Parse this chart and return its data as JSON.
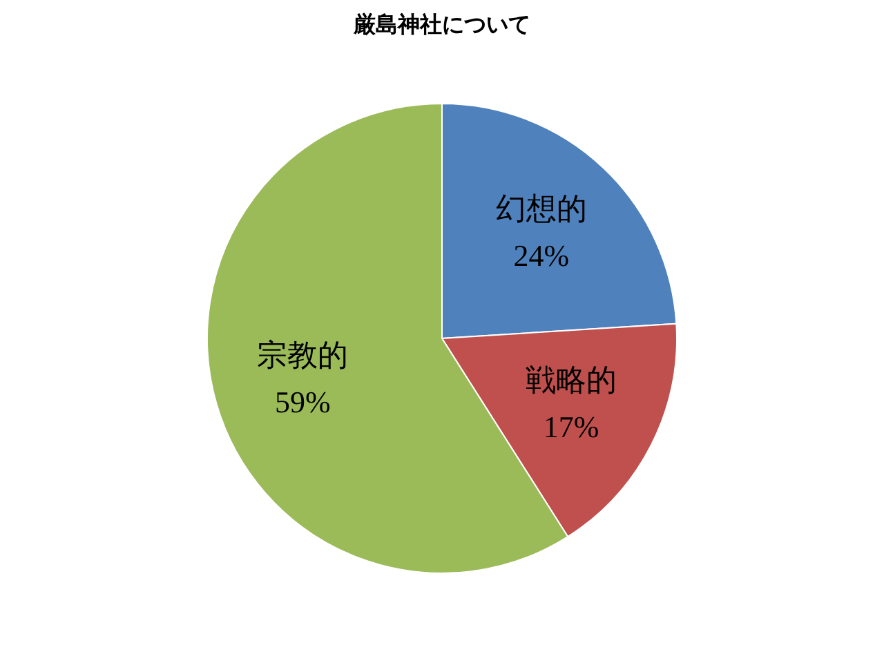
{
  "chart_data": {
    "type": "pie",
    "title": "厳島神社について",
    "categories": [
      "幻想的",
      "戦略的",
      "宗教的"
    ],
    "values": [
      24,
      17,
      59
    ],
    "colors": [
      "#4f81bd",
      "#c0504d",
      "#9bbb59"
    ],
    "value_labels": [
      "24%",
      "17%",
      "59%"
    ],
    "legend": false
  }
}
